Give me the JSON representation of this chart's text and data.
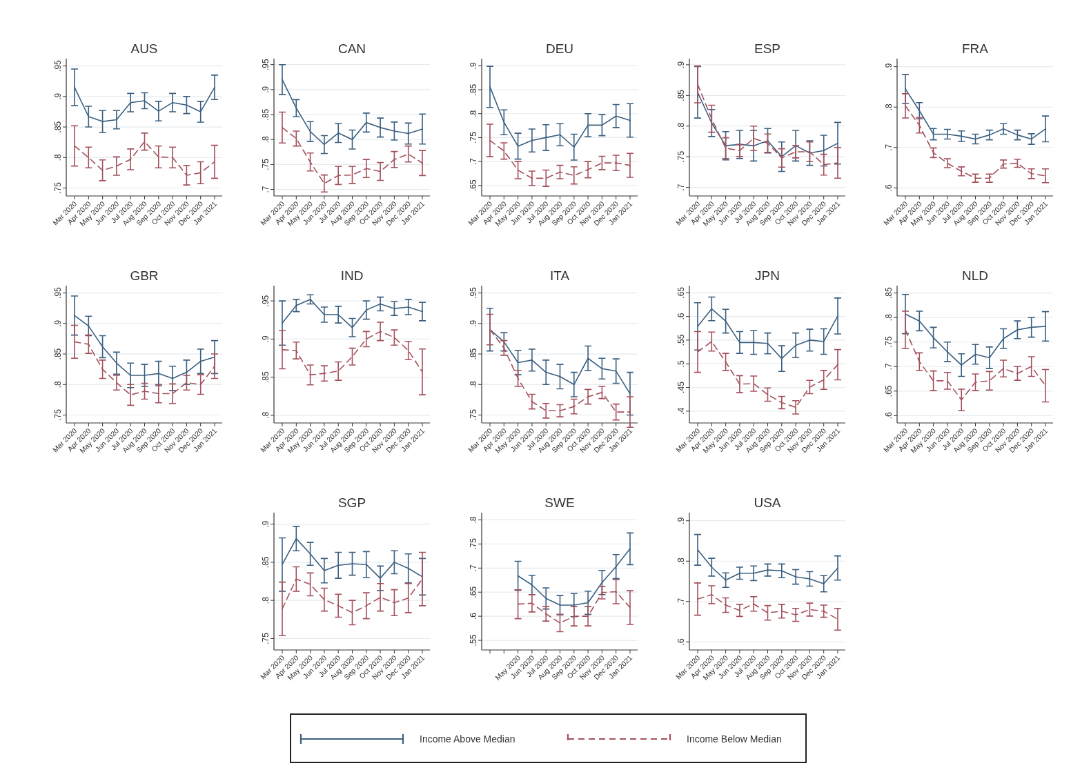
{
  "chart_data": [
    {
      "type": "line",
      "title": "AUS",
      "categories": [
        "Mar 2020",
        "Apr 2020",
        "May 2020",
        "Jun 2020",
        "Jul 2020",
        "Aug 2020",
        "Sep 2020",
        "Oct 2020",
        "Nov 2020",
        "Dec 2020",
        "Jan 2021"
      ],
      "ylim": [
        0.737,
        0.962
      ],
      "yticks": [
        {
          "value": 0.75,
          "label": ".75"
        },
        {
          "value": 0.8,
          "label": ".8"
        },
        {
          "value": 0.85,
          "label": ".85"
        },
        {
          "value": 0.9,
          "label": ".9"
        },
        {
          "value": 0.95,
          "label": ".95"
        }
      ],
      "grid": "y",
      "legend": "bottom",
      "series": [
        {
          "name": "Income Above Median",
          "color": "#3a5f80",
          "line_style": "solid",
          "values": [
            0.915,
            0.867,
            0.859,
            0.862,
            0.89,
            0.893,
            0.876,
            0.89,
            0.886,
            0.875,
            0.915
          ],
          "errors": [
            0.03,
            0.017,
            0.018,
            0.015,
            0.015,
            0.013,
            0.016,
            0.015,
            0.014,
            0.017,
            0.02
          ]
        },
        {
          "name": "Income Below Median",
          "color": "#a4505a",
          "line_style": "dashed",
          "values": [
            0.819,
            0.8,
            0.779,
            0.786,
            0.797,
            0.826,
            0.801,
            0.8,
            0.771,
            0.775,
            0.793
          ],
          "errors": [
            0.033,
            0.017,
            0.017,
            0.015,
            0.017,
            0.014,
            0.018,
            0.017,
            0.016,
            0.018,
            0.027
          ]
        }
      ]
    },
    {
      "type": "line",
      "title": "CAN",
      "categories": [
        "Mar 2020",
        "Apr 2020",
        "May 2020",
        "Jun 2020",
        "Jul 2020",
        "Aug 2020",
        "Sep 2020",
        "Oct 2020",
        "Nov 2020",
        "Dec 2020",
        "Jan 2021"
      ],
      "ylim": [
        0.687,
        0.962
      ],
      "yticks": [
        {
          "value": 0.7,
          "label": ".7"
        },
        {
          "value": 0.75,
          "label": ".75"
        },
        {
          "value": 0.8,
          "label": ".8"
        },
        {
          "value": 0.85,
          "label": ".85"
        },
        {
          "value": 0.9,
          "label": ".9"
        },
        {
          "value": 0.95,
          "label": ".95"
        }
      ],
      "grid": "y",
      "series": [
        {
          "color": "#3a5f80",
          "line_style": "solid",
          "values": [
            0.92,
            0.863,
            0.816,
            0.79,
            0.813,
            0.8,
            0.834,
            0.824,
            0.817,
            0.812,
            0.821
          ],
          "errors": [
            0.03,
            0.017,
            0.02,
            0.018,
            0.019,
            0.019,
            0.019,
            0.019,
            0.018,
            0.021,
            0.03
          ]
        },
        {
          "color": "#a4505a",
          "line_style": "dashed",
          "values": [
            0.824,
            0.802,
            0.755,
            0.712,
            0.728,
            0.729,
            0.742,
            0.736,
            0.76,
            0.771,
            0.753
          ],
          "errors": [
            0.031,
            0.015,
            0.018,
            0.017,
            0.018,
            0.017,
            0.018,
            0.018,
            0.016,
            0.016,
            0.025
          ]
        }
      ]
    },
    {
      "type": "line",
      "title": "DEU",
      "categories": [
        "Mar 2020",
        "Apr 2020",
        "May 2020",
        "Jun 2020",
        "Jul 2020",
        "Aug 2020",
        "Sep 2020",
        "Oct 2020",
        "Nov 2020",
        "Dec 2020",
        "Jan 2021"
      ],
      "ylim": [
        0.628,
        0.915
      ],
      "yticks": [
        {
          "value": 0.65,
          "label": ".65"
        },
        {
          "value": 0.7,
          "label": ".7"
        },
        {
          "value": 0.75,
          "label": ".75"
        },
        {
          "value": 0.8,
          "label": ".8"
        },
        {
          "value": 0.85,
          "label": ".85"
        },
        {
          "value": 0.9,
          "label": ".9"
        }
      ],
      "grid": "y",
      "series": [
        {
          "color": "#3a5f80",
          "line_style": "solid",
          "values": [
            0.856,
            0.782,
            0.732,
            0.744,
            0.75,
            0.756,
            0.73,
            0.776,
            0.776,
            0.795,
            0.786
          ],
          "errors": [
            0.043,
            0.026,
            0.027,
            0.024,
            0.027,
            0.023,
            0.027,
            0.024,
            0.022,
            0.024,
            0.035
          ]
        },
        {
          "color": "#a4505a",
          "line_style": "dashed",
          "values": [
            0.744,
            0.722,
            0.682,
            0.665,
            0.665,
            0.678,
            0.671,
            0.683,
            0.697,
            0.697,
            0.692
          ],
          "errors": [
            0.034,
            0.017,
            0.018,
            0.015,
            0.017,
            0.014,
            0.018,
            0.017,
            0.014,
            0.016,
            0.025
          ]
        }
      ]
    },
    {
      "type": "line",
      "title": "ESP",
      "categories": [
        "Mar 2020",
        "Apr 2020",
        "May 2020",
        "Jun 2020",
        "Jul 2020",
        "Aug 2020",
        "Sep 2020",
        "Oct 2020",
        "Nov 2020",
        "Dec 2020",
        "Jan 2021"
      ],
      "ylim": [
        0.686,
        0.91
      ],
      "yticks": [
        {
          "value": 0.7,
          "label": ".7"
        },
        {
          "value": 0.75,
          "label": ".75"
        },
        {
          "value": 0.8,
          "label": ".8"
        },
        {
          "value": 0.85,
          "label": ".85"
        },
        {
          "value": 0.9,
          "label": ".9"
        }
      ],
      "grid": "y",
      "series": [
        {
          "color": "#3a5f80",
          "line_style": "solid",
          "values": [
            0.855,
            0.805,
            0.768,
            0.77,
            0.768,
            0.776,
            0.75,
            0.768,
            0.756,
            0.76,
            0.772
          ],
          "errors": [
            0.042,
            0.022,
            0.023,
            0.023,
            0.025,
            0.02,
            0.024,
            0.025,
            0.02,
            0.025,
            0.034
          ]
        },
        {
          "color": "#a4505a",
          "line_style": "dashed",
          "values": [
            0.868,
            0.812,
            0.764,
            0.76,
            0.78,
            0.772,
            0.748,
            0.758,
            0.758,
            0.737,
            0.74
          ],
          "errors": [
            0.03,
            0.022,
            0.017,
            0.01,
            0.02,
            0.015,
            0.015,
            0.01,
            0.016,
            0.017,
            0.025
          ]
        }
      ]
    },
    {
      "type": "line",
      "title": "FRA",
      "categories": [
        "Mar 2020",
        "Apr 2020",
        "May 2020",
        "Jun 2020",
        "Jul 2020",
        "Aug 2020",
        "Sep 2020",
        "Oct 2020",
        "Nov 2020",
        "Dec 2020",
        "Jan 2021"
      ],
      "ylim": [
        0.58,
        0.92
      ],
      "yticks": [
        {
          "value": 0.6,
          "label": ".6"
        },
        {
          "value": 0.7,
          "label": ".7"
        },
        {
          "value": 0.8,
          "label": ".8"
        },
        {
          "value": 0.9,
          "label": ".9"
        }
      ],
      "grid": "y",
      "series": [
        {
          "color": "#3a5f80",
          "line_style": "solid",
          "values": [
            0.845,
            0.791,
            0.733,
            0.733,
            0.728,
            0.721,
            0.731,
            0.746,
            0.731,
            0.721,
            0.746
          ],
          "errors": [
            0.036,
            0.02,
            0.014,
            0.012,
            0.013,
            0.012,
            0.012,
            0.013,
            0.012,
            0.013,
            0.032
          ]
        },
        {
          "color": "#a4505a",
          "line_style": "dashed",
          "values": [
            0.803,
            0.755,
            0.687,
            0.661,
            0.641,
            0.624,
            0.624,
            0.659,
            0.661,
            0.635,
            0.63
          ],
          "errors": [
            0.03,
            0.019,
            0.012,
            0.011,
            0.011,
            0.01,
            0.01,
            0.01,
            0.01,
            0.012,
            0.017
          ]
        }
      ]
    },
    {
      "type": "line",
      "title": "GBR",
      "categories": [
        "Mar 2020",
        "Apr 2020",
        "May 2020",
        "Jun 2020",
        "Jul 2020",
        "Aug 2020",
        "Sep 2020",
        "Oct 2020",
        "Nov 2020",
        "Dec 2020",
        "Jan 2021"
      ],
      "ylim": [
        0.737,
        0.962
      ],
      "yticks": [
        {
          "value": 0.75,
          "label": ".75"
        },
        {
          "value": 0.8,
          "label": ".8"
        },
        {
          "value": 0.85,
          "label": ".85"
        },
        {
          "value": 0.9,
          "label": ".9"
        },
        {
          "value": 0.95,
          "label": ".95"
        }
      ],
      "grid": "y",
      "series": [
        {
          "color": "#3a5f80",
          "line_style": "solid",
          "values": [
            0.913,
            0.896,
            0.862,
            0.835,
            0.815,
            0.815,
            0.818,
            0.81,
            0.82,
            0.838,
            0.845
          ],
          "errors": [
            0.032,
            0.016,
            0.018,
            0.018,
            0.02,
            0.018,
            0.02,
            0.02,
            0.02,
            0.02,
            0.027
          ]
        },
        {
          "color": "#a4505a",
          "line_style": "dashed",
          "values": [
            0.87,
            0.866,
            0.825,
            0.803,
            0.783,
            0.789,
            0.785,
            0.785,
            0.803,
            0.8,
            0.83
          ],
          "errors": [
            0.027,
            0.015,
            0.015,
            0.012,
            0.017,
            0.013,
            0.015,
            0.016,
            0.012,
            0.016,
            0.02
          ]
        }
      ]
    },
    {
      "type": "line",
      "title": "IND",
      "categories": [
        "Mar 2020",
        "Apr 2020",
        "May 2020",
        "Jun 2020",
        "Jul 2020",
        "Aug 2020",
        "Sep 2020",
        "Oct 2020",
        "Nov 2020",
        "Dec 2020",
        "Jan 2021"
      ],
      "ylim": [
        0.79,
        0.97
      ],
      "yticks": [
        {
          "value": 0.8,
          "label": ".8"
        },
        {
          "value": 0.85,
          "label": ".85"
        },
        {
          "value": 0.9,
          "label": ".9"
        },
        {
          "value": 0.95,
          "label": ".95"
        }
      ],
      "grid": "y",
      "series": [
        {
          "color": "#3a5f80",
          "line_style": "solid",
          "values": [
            0.921,
            0.944,
            0.952,
            0.932,
            0.932,
            0.915,
            0.938,
            0.946,
            0.94,
            0.942,
            0.936
          ],
          "errors": [
            0.029,
            0.008,
            0.006,
            0.01,
            0.011,
            0.012,
            0.012,
            0.009,
            0.009,
            0.01,
            0.012
          ]
        },
        {
          "color": "#a4505a",
          "line_style": "dashed",
          "values": [
            0.886,
            0.885,
            0.853,
            0.855,
            0.858,
            0.877,
            0.9,
            0.91,
            0.902,
            0.885,
            0.857
          ],
          "errors": [
            0.025,
            0.011,
            0.013,
            0.01,
            0.012,
            0.011,
            0.01,
            0.012,
            0.01,
            0.012,
            0.03
          ]
        }
      ]
    },
    {
      "type": "line",
      "title": "ITA",
      "categories": [
        "Mar 2020",
        "Apr 2020",
        "May 2020",
        "Jun 2020",
        "Jul 2020",
        "Aug 2020",
        "Sep 2020",
        "Oct 2020",
        "Nov 2020",
        "Dec 2020",
        "Jan 2021"
      ],
      "ylim": [
        0.737,
        0.962
      ],
      "yticks": [
        {
          "value": 0.75,
          "label": ".75"
        },
        {
          "value": 0.8,
          "label": ".8"
        },
        {
          "value": 0.85,
          "label": ".85"
        },
        {
          "value": 0.9,
          "label": ".9"
        },
        {
          "value": 0.95,
          "label": ".95"
        }
      ],
      "grid": "y",
      "series": [
        {
          "color": "#3a5f80",
          "line_style": "solid",
          "values": [
            0.89,
            0.87,
            0.836,
            0.84,
            0.82,
            0.813,
            0.8,
            0.843,
            0.826,
            0.822,
            0.785
          ],
          "errors": [
            0.035,
            0.015,
            0.02,
            0.018,
            0.02,
            0.02,
            0.02,
            0.02,
            0.017,
            0.02,
            0.035
          ]
        },
        {
          "color": "#a4505a",
          "line_style": "dashed",
          "values": [
            0.89,
            0.86,
            0.81,
            0.772,
            0.757,
            0.757,
            0.764,
            0.78,
            0.787,
            0.755,
            0.755
          ],
          "errors": [
            0.025,
            0.012,
            0.013,
            0.012,
            0.012,
            0.01,
            0.012,
            0.012,
            0.01,
            0.013,
            0.025
          ]
        }
      ]
    },
    {
      "type": "line",
      "title": "JPN",
      "categories": [
        "Mar 2020",
        "Apr 2020",
        "May 2020",
        "Jun 2020",
        "Jul 2020",
        "Aug 2020",
        "Sep 2020",
        "Oct 2020",
        "Nov 2020",
        "Dec 2020",
        "Jan 2021"
      ],
      "ylim": [
        0.375,
        0.665
      ],
      "yticks": [
        {
          "value": 0.4,
          "label": ".4"
        },
        {
          "value": 0.45,
          "label": ".45"
        },
        {
          "value": 0.5,
          "label": ".5"
        },
        {
          "value": 0.55,
          "label": ".55"
        },
        {
          "value": 0.6,
          "label": ".6"
        },
        {
          "value": 0.65,
          "label": ".65"
        }
      ],
      "grid": "y",
      "series": [
        {
          "color": "#3a5f80",
          "line_style": "solid",
          "values": [
            0.579,
            0.616,
            0.59,
            0.545,
            0.545,
            0.543,
            0.511,
            0.539,
            0.55,
            0.547,
            0.601
          ],
          "errors": [
            0.05,
            0.025,
            0.025,
            0.023,
            0.025,
            0.022,
            0.027,
            0.026,
            0.023,
            0.027,
            0.038
          ]
        },
        {
          "color": "#a4505a",
          "line_style": "dashed",
          "values": [
            0.525,
            0.547,
            0.504,
            0.457,
            0.458,
            0.435,
            0.418,
            0.408,
            0.451,
            0.466,
            0.498
          ],
          "errors": [
            0.043,
            0.02,
            0.018,
            0.018,
            0.016,
            0.014,
            0.013,
            0.014,
            0.014,
            0.02,
            0.032
          ]
        }
      ]
    },
    {
      "type": "line",
      "title": "NLD",
      "categories": [
        "Mar 2020",
        "Apr 2020",
        "May 2020",
        "Jun 2020",
        "Jul 2020",
        "Aug 2020",
        "Sep 2020",
        "Oct 2020",
        "Nov 2020",
        "Dec 2020",
        "Jan 2021"
      ],
      "ylim": [
        0.585,
        0.865
      ],
      "yticks": [
        {
          "value": 0.6,
          "label": ".6"
        },
        {
          "value": 0.65,
          "label": ".65"
        },
        {
          "value": 0.7,
          "label": ".7"
        },
        {
          "value": 0.75,
          "label": ".75"
        },
        {
          "value": 0.8,
          "label": ".8"
        },
        {
          "value": 0.85,
          "label": ".85"
        }
      ],
      "grid": "y",
      "series": [
        {
          "color": "#3a5f80",
          "line_style": "solid",
          "values": [
            0.807,
            0.793,
            0.759,
            0.73,
            0.703,
            0.725,
            0.718,
            0.757,
            0.775,
            0.78,
            0.782
          ],
          "errors": [
            0.04,
            0.02,
            0.021,
            0.02,
            0.023,
            0.02,
            0.022,
            0.02,
            0.018,
            0.02,
            0.03
          ]
        },
        {
          "color": "#a4505a",
          "line_style": "dashed",
          "values": [
            0.775,
            0.71,
            0.671,
            0.671,
            0.632,
            0.668,
            0.671,
            0.696,
            0.686,
            0.7,
            0.661
          ],
          "errors": [
            0.038,
            0.018,
            0.02,
            0.017,
            0.022,
            0.017,
            0.019,
            0.017,
            0.014,
            0.02,
            0.033
          ]
        }
      ]
    },
    {
      "type": "line",
      "title": "SGP",
      "categories": [
        "Mar 2020",
        "Apr 2020",
        "May 2020",
        "Jun 2020",
        "Jul 2020",
        "Aug 2020",
        "Sep 2020",
        "Oct 2020",
        "Nov 2020",
        "Dec 2020",
        "Jan 2021"
      ],
      "ylim": [
        0.735,
        0.915
      ],
      "yticks": [
        {
          "value": 0.75,
          "label": ".75"
        },
        {
          "value": 0.8,
          "label": ".8"
        },
        {
          "value": 0.85,
          "label": ".85"
        },
        {
          "value": 0.9,
          "label": ".9"
        }
      ],
      "grid": "y",
      "series": [
        {
          "color": "#3a5f80",
          "line_style": "solid",
          "values": [
            0.847,
            0.881,
            0.861,
            0.839,
            0.846,
            0.848,
            0.847,
            0.829,
            0.85,
            0.842,
            0.831
          ],
          "errors": [
            0.035,
            0.016,
            0.015,
            0.016,
            0.017,
            0.015,
            0.017,
            0.016,
            0.015,
            0.019,
            0.024
          ]
        },
        {
          "color": "#a4505a",
          "line_style": "dashed",
          "values": [
            0.789,
            0.828,
            0.821,
            0.801,
            0.793,
            0.784,
            0.793,
            0.804,
            0.797,
            0.803,
            0.828
          ],
          "errors": [
            0.035,
            0.016,
            0.015,
            0.015,
            0.015,
            0.016,
            0.017,
            0.018,
            0.017,
            0.019,
            0.035
          ]
        }
      ]
    },
    {
      "type": "line",
      "title": "SWE",
      "categories": [
        null,
        null,
        "May 2020",
        "Jun 2020",
        "Jul 2020",
        "Aug 2020",
        "Sep 2020",
        "Oct 2020",
        "Nov 2020",
        "Dec 2020",
        "Jan 2021"
      ],
      "ylim": [
        0.53,
        0.815
      ],
      "yticks": [
        {
          "value": 0.55,
          "label": ".55"
        },
        {
          "value": 0.6,
          "label": ".6"
        },
        {
          "value": 0.65,
          "label": ".65"
        },
        {
          "value": 0.7,
          "label": ".7"
        },
        {
          "value": 0.75,
          "label": ".75"
        },
        {
          "value": 0.8,
          "label": ".8"
        }
      ],
      "grid": "y",
      "series": [
        {
          "color": "#3a5f80",
          "line_style": "solid",
          "values": [
            null,
            null,
            0.684,
            0.665,
            0.637,
            0.623,
            0.623,
            0.628,
            0.67,
            0.703,
            0.74
          ],
          "errors": [
            null,
            null,
            0.03,
            0.02,
            0.022,
            0.02,
            0.024,
            0.024,
            0.025,
            0.025,
            0.033
          ]
        },
        {
          "color": "#a4505a",
          "line_style": "dashed",
          "values": [
            null,
            null,
            0.625,
            0.627,
            0.605,
            0.586,
            0.6,
            0.6,
            0.649,
            0.651,
            0.618
          ],
          "errors": [
            null,
            null,
            0.03,
            0.018,
            0.015,
            0.018,
            0.02,
            0.02,
            0.013,
            0.025,
            0.035
          ]
        }
      ]
    },
    {
      "type": "line",
      "title": "USA",
      "categories": [
        "Mar 2020",
        "Apr 2020",
        "May 2020",
        "Jun 2020",
        "Jul 2020",
        "Aug 2020",
        "Sep 2020",
        "Oct 2020",
        "Nov 2020",
        "Dec 2020",
        "Jan 2021"
      ],
      "ylim": [
        0.58,
        0.92
      ],
      "yticks": [
        {
          "value": 0.6,
          "label": ".6"
        },
        {
          "value": 0.7,
          "label": ".7"
        },
        {
          "value": 0.8,
          "label": ".8"
        },
        {
          "value": 0.9,
          "label": ".9"
        }
      ],
      "grid": "y",
      "series": [
        {
          "color": "#3a5f80",
          "line_style": "solid",
          "values": [
            0.828,
            0.785,
            0.753,
            0.77,
            0.77,
            0.778,
            0.776,
            0.761,
            0.756,
            0.744,
            0.783
          ],
          "errors": [
            0.038,
            0.022,
            0.018,
            0.015,
            0.018,
            0.015,
            0.017,
            0.018,
            0.018,
            0.02,
            0.03
          ]
        },
        {
          "color": "#a4505a",
          "line_style": "dashed",
          "values": [
            0.706,
            0.717,
            0.691,
            0.678,
            0.694,
            0.672,
            0.676,
            0.667,
            0.68,
            0.676,
            0.656
          ],
          "errors": [
            0.04,
            0.022,
            0.018,
            0.015,
            0.018,
            0.018,
            0.017,
            0.016,
            0.016,
            0.015,
            0.027
          ]
        }
      ]
    }
  ]
}
